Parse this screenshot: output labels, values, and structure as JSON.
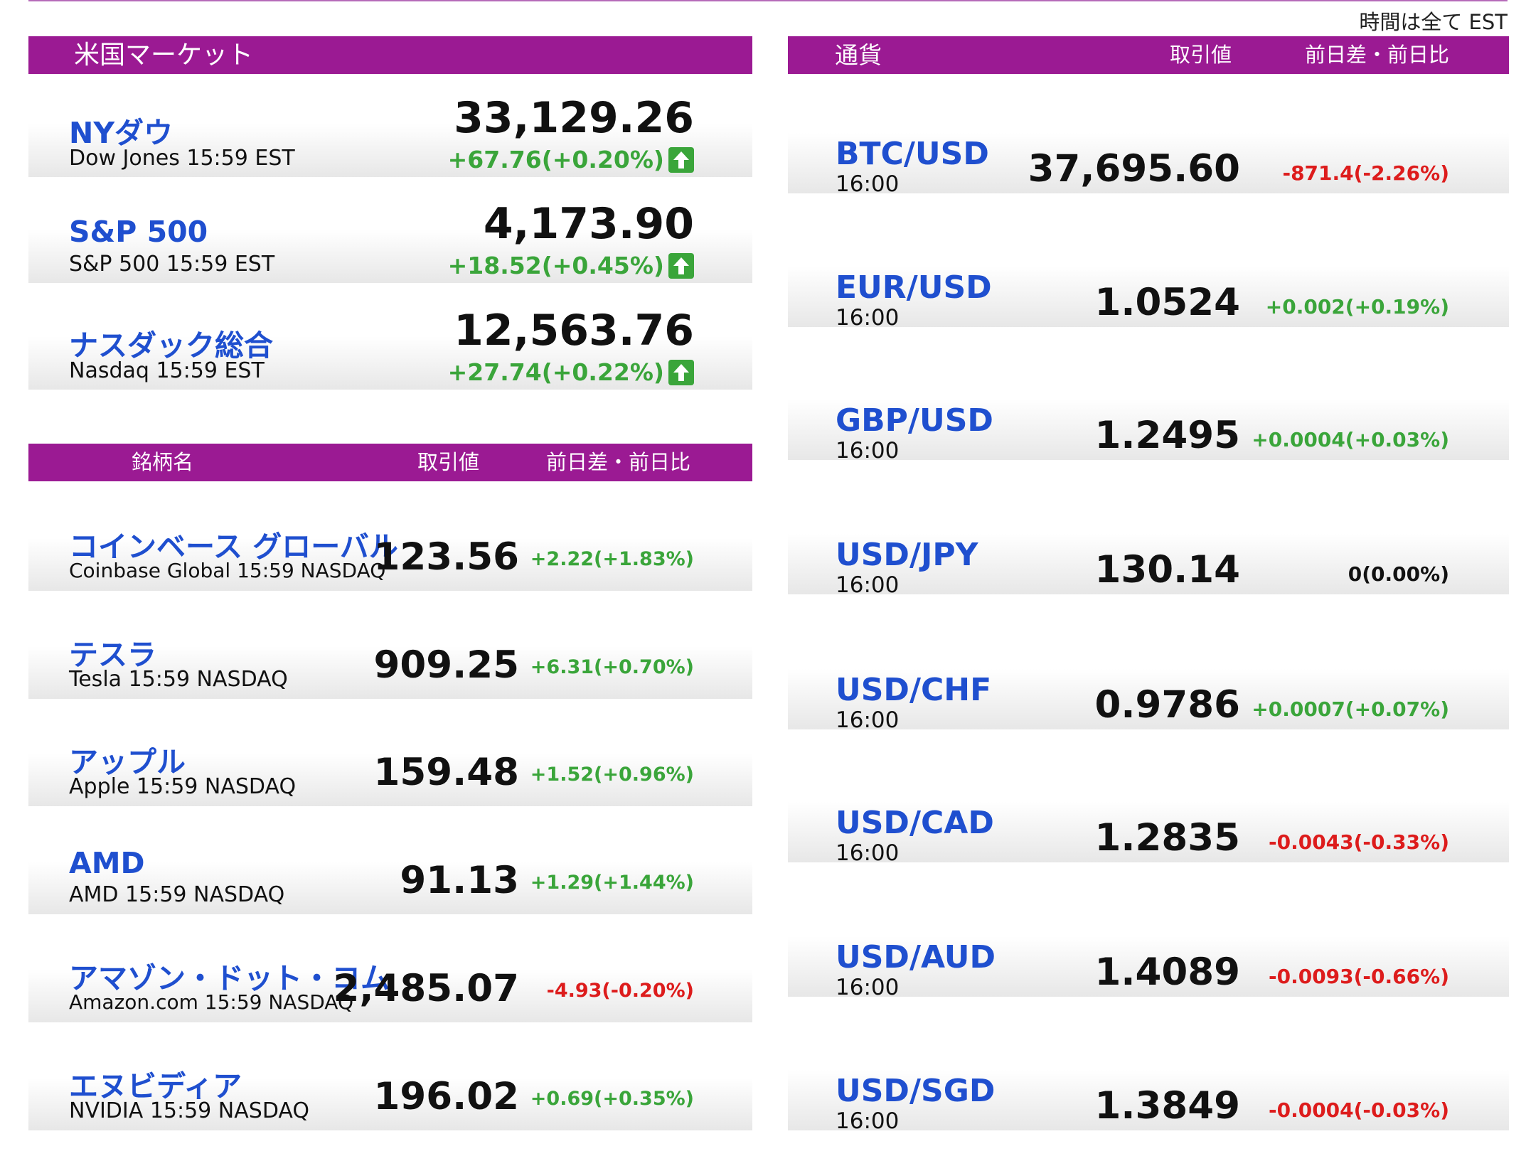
{
  "timezone_note": "時間は全て EST",
  "market": {
    "header": "米国マーケット",
    "indices": [
      {
        "name": "NYダウ",
        "sub": "Dow Jones 15:59 EST",
        "value": "33,129.26",
        "change": "+67.76(+0.20%)",
        "direction": "up"
      },
      {
        "name": "S&P 500",
        "sub": "S&P 500 15:59 EST",
        "value": "4,173.90",
        "change": "+18.52(+0.45%)",
        "direction": "up"
      },
      {
        "name": "ナスダック総合",
        "sub": "Nasdaq 15:59 EST",
        "value": "12,563.76",
        "change": "+27.74(+0.22%)",
        "direction": "up"
      }
    ]
  },
  "stocks": {
    "header": {
      "name": "銘柄名",
      "price": "取引値",
      "change": "前日差・前日比"
    },
    "rows": [
      {
        "name": "コインベース グローバル",
        "sub": "Coinbase Global 15:59  NASDAQ",
        "value": "123.56",
        "change": "+2.22(+1.83%)",
        "direction": "up"
      },
      {
        "name": "テスラ",
        "sub": "Tesla 15:59  NASDAQ",
        "value": "909.25",
        "change": "+6.31(+0.70%)",
        "direction": "up"
      },
      {
        "name": "アップル",
        "sub": "Apple 15:59  NASDAQ",
        "value": "159.48",
        "change": "+1.52(+0.96%)",
        "direction": "up"
      },
      {
        "name": "AMD",
        "sub": "AMD 15:59  NASDAQ",
        "value": "91.13",
        "change": "+1.29(+1.44%)",
        "direction": "up"
      },
      {
        "name": "アマゾン・ドット・コム",
        "sub": "Amazon.com 15:59  NASDAQ",
        "value": "2,485.07",
        "change": "-4.93(-0.20%)",
        "direction": "down"
      },
      {
        "name": "エヌビディア",
        "sub": "NVIDIA 15:59  NASDAQ",
        "value": "196.02",
        "change": "+0.69(+0.35%)",
        "direction": "up"
      }
    ]
  },
  "currency": {
    "header": {
      "name": "通貨",
      "price": "取引値",
      "change": "前日差・前日比"
    },
    "rows": [
      {
        "pair": "BTC/USD",
        "time": "16:00",
        "value": "37,695.60",
        "change": "-871.4(-2.26%)",
        "direction": "down"
      },
      {
        "pair": "EUR/USD",
        "time": "16:00",
        "value": "1.0524",
        "change": "+0.002(+0.19%)",
        "direction": "up"
      },
      {
        "pair": "GBP/USD",
        "time": "16:00",
        "value": "1.2495",
        "change": "+0.0004(+0.03%)",
        "direction": "up"
      },
      {
        "pair": "USD/JPY",
        "time": "16:00",
        "value": "130.14",
        "change": "0(0.00%)",
        "direction": "flat"
      },
      {
        "pair": "USD/CHF",
        "time": "16:00",
        "value": "0.9786",
        "change": "+0.0007(+0.07%)",
        "direction": "up"
      },
      {
        "pair": "USD/CAD",
        "time": "16:00",
        "value": "1.2835",
        "change": "-0.0043(-0.33%)",
        "direction": "down"
      },
      {
        "pair": "USD/AUD",
        "time": "16:00",
        "value": "1.4089",
        "change": "-0.0093(-0.66%)",
        "direction": "down"
      },
      {
        "pair": "USD/SGD",
        "time": "16:00",
        "value": "1.3849",
        "change": "-0.0004(-0.03%)",
        "direction": "down"
      }
    ]
  },
  "colors": {
    "header_bg": "#9b1a93",
    "name_blue": "#1f4fcf",
    "up_green": "#3aa53a",
    "down_red": "#dd1c1c"
  }
}
